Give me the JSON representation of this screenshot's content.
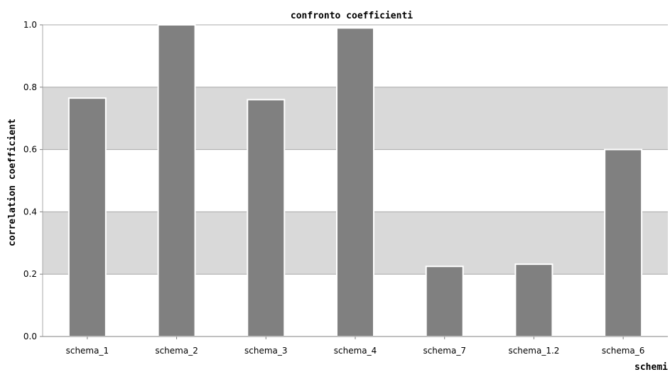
{
  "chart_data": {
    "type": "bar",
    "title": "confronto coefficienti",
    "xlabel": "schemi",
    "ylabel": "correlation coefficient",
    "categories": [
      "schema_1",
      "schema_2",
      "schema_3",
      "schema_4",
      "schema_7",
      "schema_1.2",
      "schema_6"
    ],
    "values": [
      0.765,
      1.0,
      0.76,
      0.99,
      0.225,
      0.232,
      0.6
    ],
    "ylim": [
      0,
      1.0
    ],
    "yticks": [
      "0.0",
      "0.2",
      "0.4",
      "0.6",
      "0.8",
      "1.0"
    ],
    "ytick_values": [
      0,
      0.2,
      0.4,
      0.6,
      0.8,
      1.0
    ],
    "grid": "horizontal bands",
    "legend": "none",
    "colors": {
      "bar": "#808080",
      "bar_edge": "#ffffff",
      "band": "#d9d9d9",
      "grid": "#a8a8a8",
      "background": "#ffffff"
    }
  }
}
